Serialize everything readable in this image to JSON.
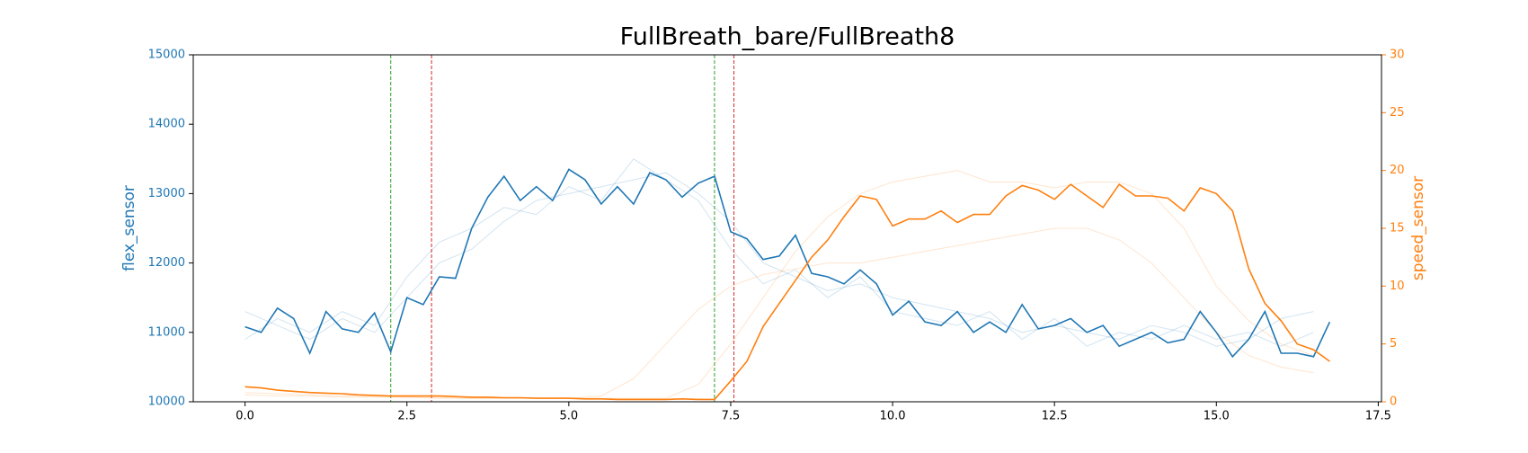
{
  "chart_data": {
    "type": "line",
    "title": "FullBreath_bare/FullBreath8",
    "ylabel": "flex_sensor",
    "y2label": "speed_sensor",
    "xlim": [
      -0.8,
      17.55
    ],
    "xticks": [
      {
        "value": 0,
        "label": "0.0"
      },
      {
        "value": 2.5,
        "label": "2.5"
      },
      {
        "value": 5,
        "label": "5.0"
      },
      {
        "value": 7.5,
        "label": "7.5"
      },
      {
        "value": 10,
        "label": "10.0"
      },
      {
        "value": 12.5,
        "label": "12.5"
      },
      {
        "value": 15,
        "label": "15.0"
      },
      {
        "value": 17.5,
        "label": "17.5"
      }
    ],
    "ylim": [
      10000,
      15000
    ],
    "yticks": [
      10000,
      11000,
      12000,
      13000,
      14000,
      15000
    ],
    "y2lim": [
      0,
      30
    ],
    "y2ticks": [
      0,
      5,
      10,
      15,
      20,
      25,
      30
    ],
    "y_color": "#1f77b4",
    "y2_color": "#ff7f0e",
    "vlines": [
      {
        "x": 2.25,
        "color": "#2ca02c"
      },
      {
        "x": 2.88,
        "color": "#d62728"
      },
      {
        "x": 7.25,
        "color": "#2ca02c"
      },
      {
        "x": 7.55,
        "color": "#d62728"
      }
    ],
    "series": [
      {
        "color": "#1f77b4",
        "opacity": 0.2,
        "width": 1,
        "x": [
          0,
          0.5,
          1,
          1.5,
          2,
          2.5,
          3,
          3.5,
          4,
          4.5,
          5,
          5.5,
          6,
          6.5,
          7,
          7.5,
          8,
          8.5,
          9,
          9.5,
          10,
          10.5,
          11,
          11.5,
          12,
          12.5,
          13,
          13.5,
          14,
          14.5,
          15,
          15.5,
          16,
          16.5
        ],
        "values": [
          11300,
          11100,
          10900,
          11200,
          11000,
          11500,
          12000,
          12200,
          12600,
          12900,
          13000,
          13100,
          13200,
          13300,
          13000,
          12600,
          12000,
          11800,
          11600,
          11700,
          11500,
          11400,
          11300,
          11200,
          11000,
          11100,
          11000,
          10900,
          11100,
          11000,
          10800,
          10900,
          11200,
          11300
        ]
      },
      {
        "color": "#1f77b4",
        "opacity": 0.2,
        "width": 1,
        "x": [
          0,
          0.5,
          1,
          1.5,
          2,
          2.5,
          3,
          3.5,
          4,
          4.5,
          5,
          5.5,
          6,
          6.5,
          7,
          7.5,
          8,
          8.5,
          9,
          9.5,
          10,
          10.5,
          11,
          11.5,
          12,
          12.5,
          13,
          13.5,
          14,
          14.5,
          15,
          15.5,
          16,
          16.5
        ],
        "values": [
          10900,
          11200,
          11000,
          11300,
          11100,
          11800,
          12300,
          12500,
          12800,
          12700,
          13100,
          12900,
          13500,
          13200,
          12900,
          12200,
          11700,
          11900,
          11500,
          11800,
          11300,
          11200,
          11100,
          11300,
          10900,
          11200,
          10800,
          11000,
          10900,
          11100,
          10900,
          11000,
          10800,
          11000
        ]
      },
      {
        "color": "#ff7f0e",
        "opacity": 0.2,
        "width": 1,
        "axis": "y2",
        "x": [
          0,
          0.5,
          1,
          1.5,
          2,
          2.5,
          3,
          3.5,
          4,
          4.5,
          5,
          5.5,
          6,
          6.5,
          7,
          7.5,
          8,
          8.5,
          9,
          9.5,
          10,
          10.5,
          11,
          11.5,
          12,
          12.5,
          13,
          13.5,
          14,
          14.5,
          15,
          15.5,
          16,
          16.5
        ],
        "values": [
          0.8,
          0.7,
          0.6,
          0.5,
          0.5,
          0.4,
          0.4,
          0.3,
          0.3,
          0.3,
          0.3,
          0.3,
          0.3,
          0.3,
          1.5,
          5,
          9,
          13,
          16,
          18,
          19,
          19.5,
          20,
          19,
          19,
          18.5,
          19,
          19,
          18,
          15,
          10,
          7,
          5,
          4
        ]
      },
      {
        "color": "#ff7f0e",
        "opacity": 0.2,
        "width": 1,
        "axis": "y2",
        "x": [
          0,
          0.5,
          1,
          1.5,
          2,
          2.5,
          3,
          3.5,
          4,
          4.5,
          5,
          5.5,
          6,
          6.5,
          7,
          7.5,
          8,
          8.5,
          9,
          9.5,
          10,
          10.5,
          11,
          11.5,
          12,
          12.5,
          13,
          13.5,
          14,
          14.5,
          15,
          15.5,
          16,
          16.5
        ],
        "values": [
          0.6,
          0.5,
          0.5,
          0.4,
          0.4,
          0.4,
          0.3,
          0.3,
          0.3,
          0.3,
          0.3,
          0.5,
          2,
          5,
          8,
          10,
          11,
          11.5,
          12,
          12,
          12.5,
          13,
          13.5,
          14,
          14.5,
          15,
          15,
          14,
          12,
          9,
          6,
          4,
          3,
          2.5
        ]
      },
      {
        "color": "#1f77b4",
        "opacity": 1,
        "width": 1.6,
        "x": [
          0,
          0.25,
          0.5,
          0.75,
          1,
          1.25,
          1.5,
          1.75,
          2,
          2.25,
          2.5,
          2.75,
          3,
          3.25,
          3.5,
          3.75,
          4,
          4.25,
          4.5,
          4.75,
          5,
          5.25,
          5.5,
          5.75,
          6,
          6.25,
          6.5,
          6.75,
          7,
          7.25,
          7.5,
          7.75,
          8,
          8.25,
          8.5,
          8.75,
          9,
          9.25,
          9.5,
          9.75,
          10,
          10.25,
          10.5,
          10.75,
          11,
          11.25,
          11.5,
          11.75,
          12,
          12.25,
          12.5,
          12.75,
          13,
          13.25,
          13.5,
          13.75,
          14,
          14.25,
          14.5,
          14.75,
          15,
          15.25,
          15.5,
          15.75,
          16,
          16.25,
          16.5,
          16.75
        ],
        "values": [
          11080,
          11000,
          11350,
          11200,
          10700,
          11300,
          11050,
          11000,
          11280,
          10720,
          11500,
          11400,
          11800,
          11780,
          12500,
          12950,
          13250,
          12900,
          13100,
          12900,
          13350,
          13200,
          12850,
          13100,
          12850,
          13300,
          13200,
          12950,
          13150,
          13250,
          12450,
          12350,
          12050,
          12100,
          12400,
          11850,
          11800,
          11700,
          11900,
          11700,
          11250,
          11450,
          11150,
          11100,
          11300,
          11000,
          11150,
          11000,
          11400,
          11050,
          11100,
          11200,
          11000,
          11100,
          10800,
          10900,
          11000,
          10850,
          10900,
          11300,
          11000,
          10650,
          10900,
          11300,
          10700,
          10700,
          10650,
          11150
        ]
      },
      {
        "color": "#ff7f0e",
        "opacity": 1,
        "width": 1.6,
        "axis": "y2",
        "x": [
          0,
          0.25,
          0.5,
          0.75,
          1,
          1.25,
          1.5,
          1.75,
          2,
          2.25,
          2.5,
          2.75,
          3,
          3.25,
          3.5,
          3.75,
          4,
          4.25,
          4.5,
          4.75,
          5,
          5.25,
          5.5,
          5.75,
          6,
          6.25,
          6.5,
          6.75,
          7,
          7.25,
          7.5,
          7.75,
          8,
          8.25,
          8.5,
          8.75,
          9,
          9.25,
          9.5,
          9.75,
          10,
          10.25,
          10.5,
          10.75,
          11,
          11.25,
          11.5,
          11.75,
          12,
          12.25,
          12.5,
          12.75,
          13,
          13.25,
          13.5,
          13.75,
          14,
          14.25,
          14.5,
          14.75,
          15,
          15.25,
          15.5,
          15.75,
          16,
          16.25,
          16.5,
          16.75
        ],
        "values": [
          1.3,
          1.2,
          1.0,
          0.9,
          0.8,
          0.75,
          0.7,
          0.6,
          0.55,
          0.5,
          0.5,
          0.5,
          0.5,
          0.45,
          0.4,
          0.4,
          0.35,
          0.35,
          0.3,
          0.3,
          0.3,
          0.25,
          0.25,
          0.2,
          0.2,
          0.2,
          0.2,
          0.25,
          0.2,
          0.2,
          1.8,
          3.5,
          6.5,
          8.5,
          10.5,
          12.5,
          14.0,
          16.0,
          17.8,
          17.5,
          15.2,
          15.8,
          15.8,
          16.5,
          15.5,
          16.2,
          16.2,
          17.8,
          18.7,
          18.3,
          17.5,
          18.8,
          17.8,
          16.8,
          18.8,
          17.8,
          17.8,
          17.6,
          16.5,
          18.5,
          18.0,
          16.5,
          11.5,
          8.5,
          7.0,
          5.0,
          4.5,
          3.5
        ]
      }
    ]
  }
}
